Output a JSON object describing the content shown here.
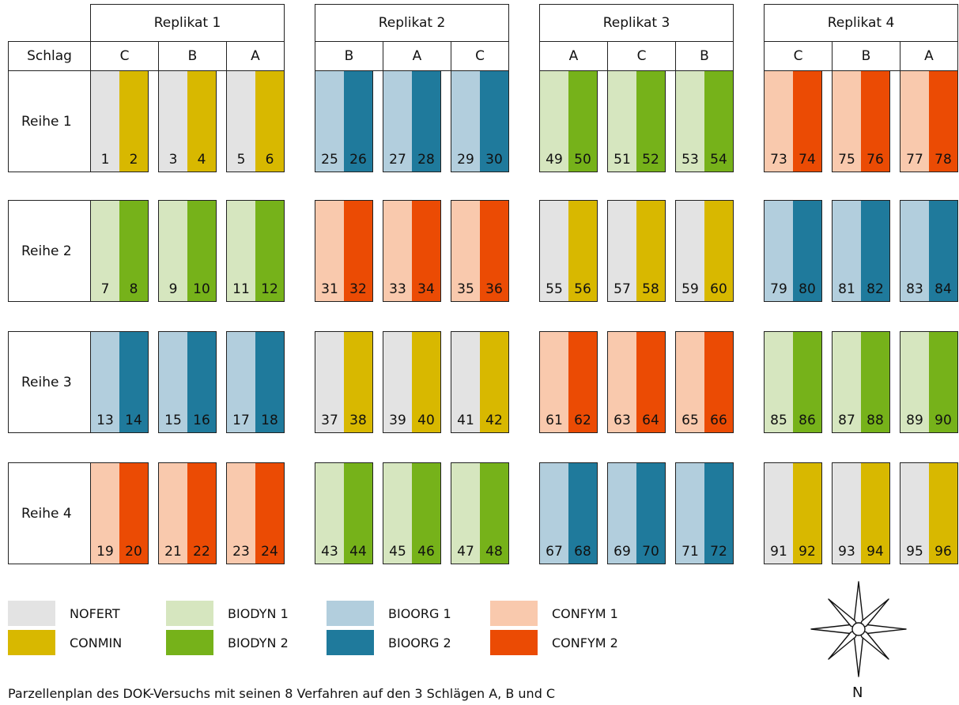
{
  "colors": {
    "NOFERT": "#e3e3e3",
    "CONMIN": "#d8b800",
    "BIODYN 1": "#d6e6bf",
    "BIODYN 2": "#76b21a",
    "BIOORG 1": "#b2cedd",
    "BIOORG 2": "#1f7a9c",
    "CONFYM 1": "#f9c9ad",
    "CONFYM 2": "#eb4b04"
  },
  "header": {
    "schlag_label": "Schlag",
    "replicates": [
      {
        "label": "Replikat 1",
        "schlaege": [
          "C",
          "B",
          "A"
        ]
      },
      {
        "label": "Replikat 2",
        "schlaege": [
          "B",
          "A",
          "C"
        ]
      },
      {
        "label": "Replikat 3",
        "schlaege": [
          "A",
          "C",
          "B"
        ]
      },
      {
        "label": "Replikat 4",
        "schlaege": [
          "C",
          "B",
          "A"
        ]
      }
    ]
  },
  "rows": [
    "Reihe 1",
    "Reihe 2",
    "Reihe 3",
    "Reihe 4"
  ],
  "treatment_pairs": [
    [
      "NOFERT",
      "CONMIN"
    ],
    [
      "BIODYN 1",
      "BIODYN 2"
    ],
    [
      "BIOORG 1",
      "BIOORG 2"
    ],
    [
      "CONFYM 1",
      "CONFYM 2"
    ]
  ],
  "plot_pair_index": [
    [
      0,
      2,
      1,
      3
    ],
    [
      1,
      3,
      0,
      2
    ],
    [
      2,
      0,
      3,
      1
    ],
    [
      3,
      1,
      2,
      0
    ]
  ],
  "plot_numbers": [
    [
      [
        [
          1,
          2
        ],
        [
          3,
          4
        ],
        [
          5,
          6
        ]
      ],
      [
        [
          25,
          26
        ],
        [
          27,
          28
        ],
        [
          29,
          30
        ]
      ],
      [
        [
          49,
          50
        ],
        [
          51,
          52
        ],
        [
          53,
          54
        ]
      ],
      [
        [
          73,
          74
        ],
        [
          75,
          76
        ],
        [
          77,
          78
        ]
      ]
    ],
    [
      [
        [
          7,
          8
        ],
        [
          9,
          10
        ],
        [
          11,
          12
        ]
      ],
      [
        [
          31,
          32
        ],
        [
          33,
          34
        ],
        [
          35,
          36
        ]
      ],
      [
        [
          55,
          56
        ],
        [
          57,
          58
        ],
        [
          59,
          60
        ]
      ],
      [
        [
          79,
          80
        ],
        [
          81,
          82
        ],
        [
          83,
          84
        ]
      ]
    ],
    [
      [
        [
          13,
          14
        ],
        [
          15,
          16
        ],
        [
          17,
          18
        ]
      ],
      [
        [
          37,
          38
        ],
        [
          39,
          40
        ],
        [
          41,
          42
        ]
      ],
      [
        [
          61,
          62
        ],
        [
          63,
          64
        ],
        [
          65,
          66
        ]
      ],
      [
        [
          85,
          86
        ],
        [
          87,
          88
        ],
        [
          89,
          90
        ]
      ]
    ],
    [
      [
        [
          19,
          20
        ],
        [
          21,
          22
        ],
        [
          23,
          24
        ]
      ],
      [
        [
          43,
          44
        ],
        [
          45,
          46
        ],
        [
          47,
          48
        ]
      ],
      [
        [
          67,
          68
        ],
        [
          69,
          70
        ],
        [
          71,
          72
        ]
      ],
      [
        [
          91,
          92
        ],
        [
          93,
          94
        ],
        [
          95,
          96
        ]
      ]
    ]
  ],
  "legend": [
    "NOFERT",
    "CONMIN",
    "BIODYN 1",
    "BIODYN 2",
    "BIOORG 1",
    "BIOORG 2",
    "CONFYM 1",
    "CONFYM 2"
  ],
  "compass": {
    "label": "N"
  },
  "caption": "Parzellenplan des DOK-Versuchs mit seinen 8 Verfahren auf den 3 Schlägen A, B und C"
}
